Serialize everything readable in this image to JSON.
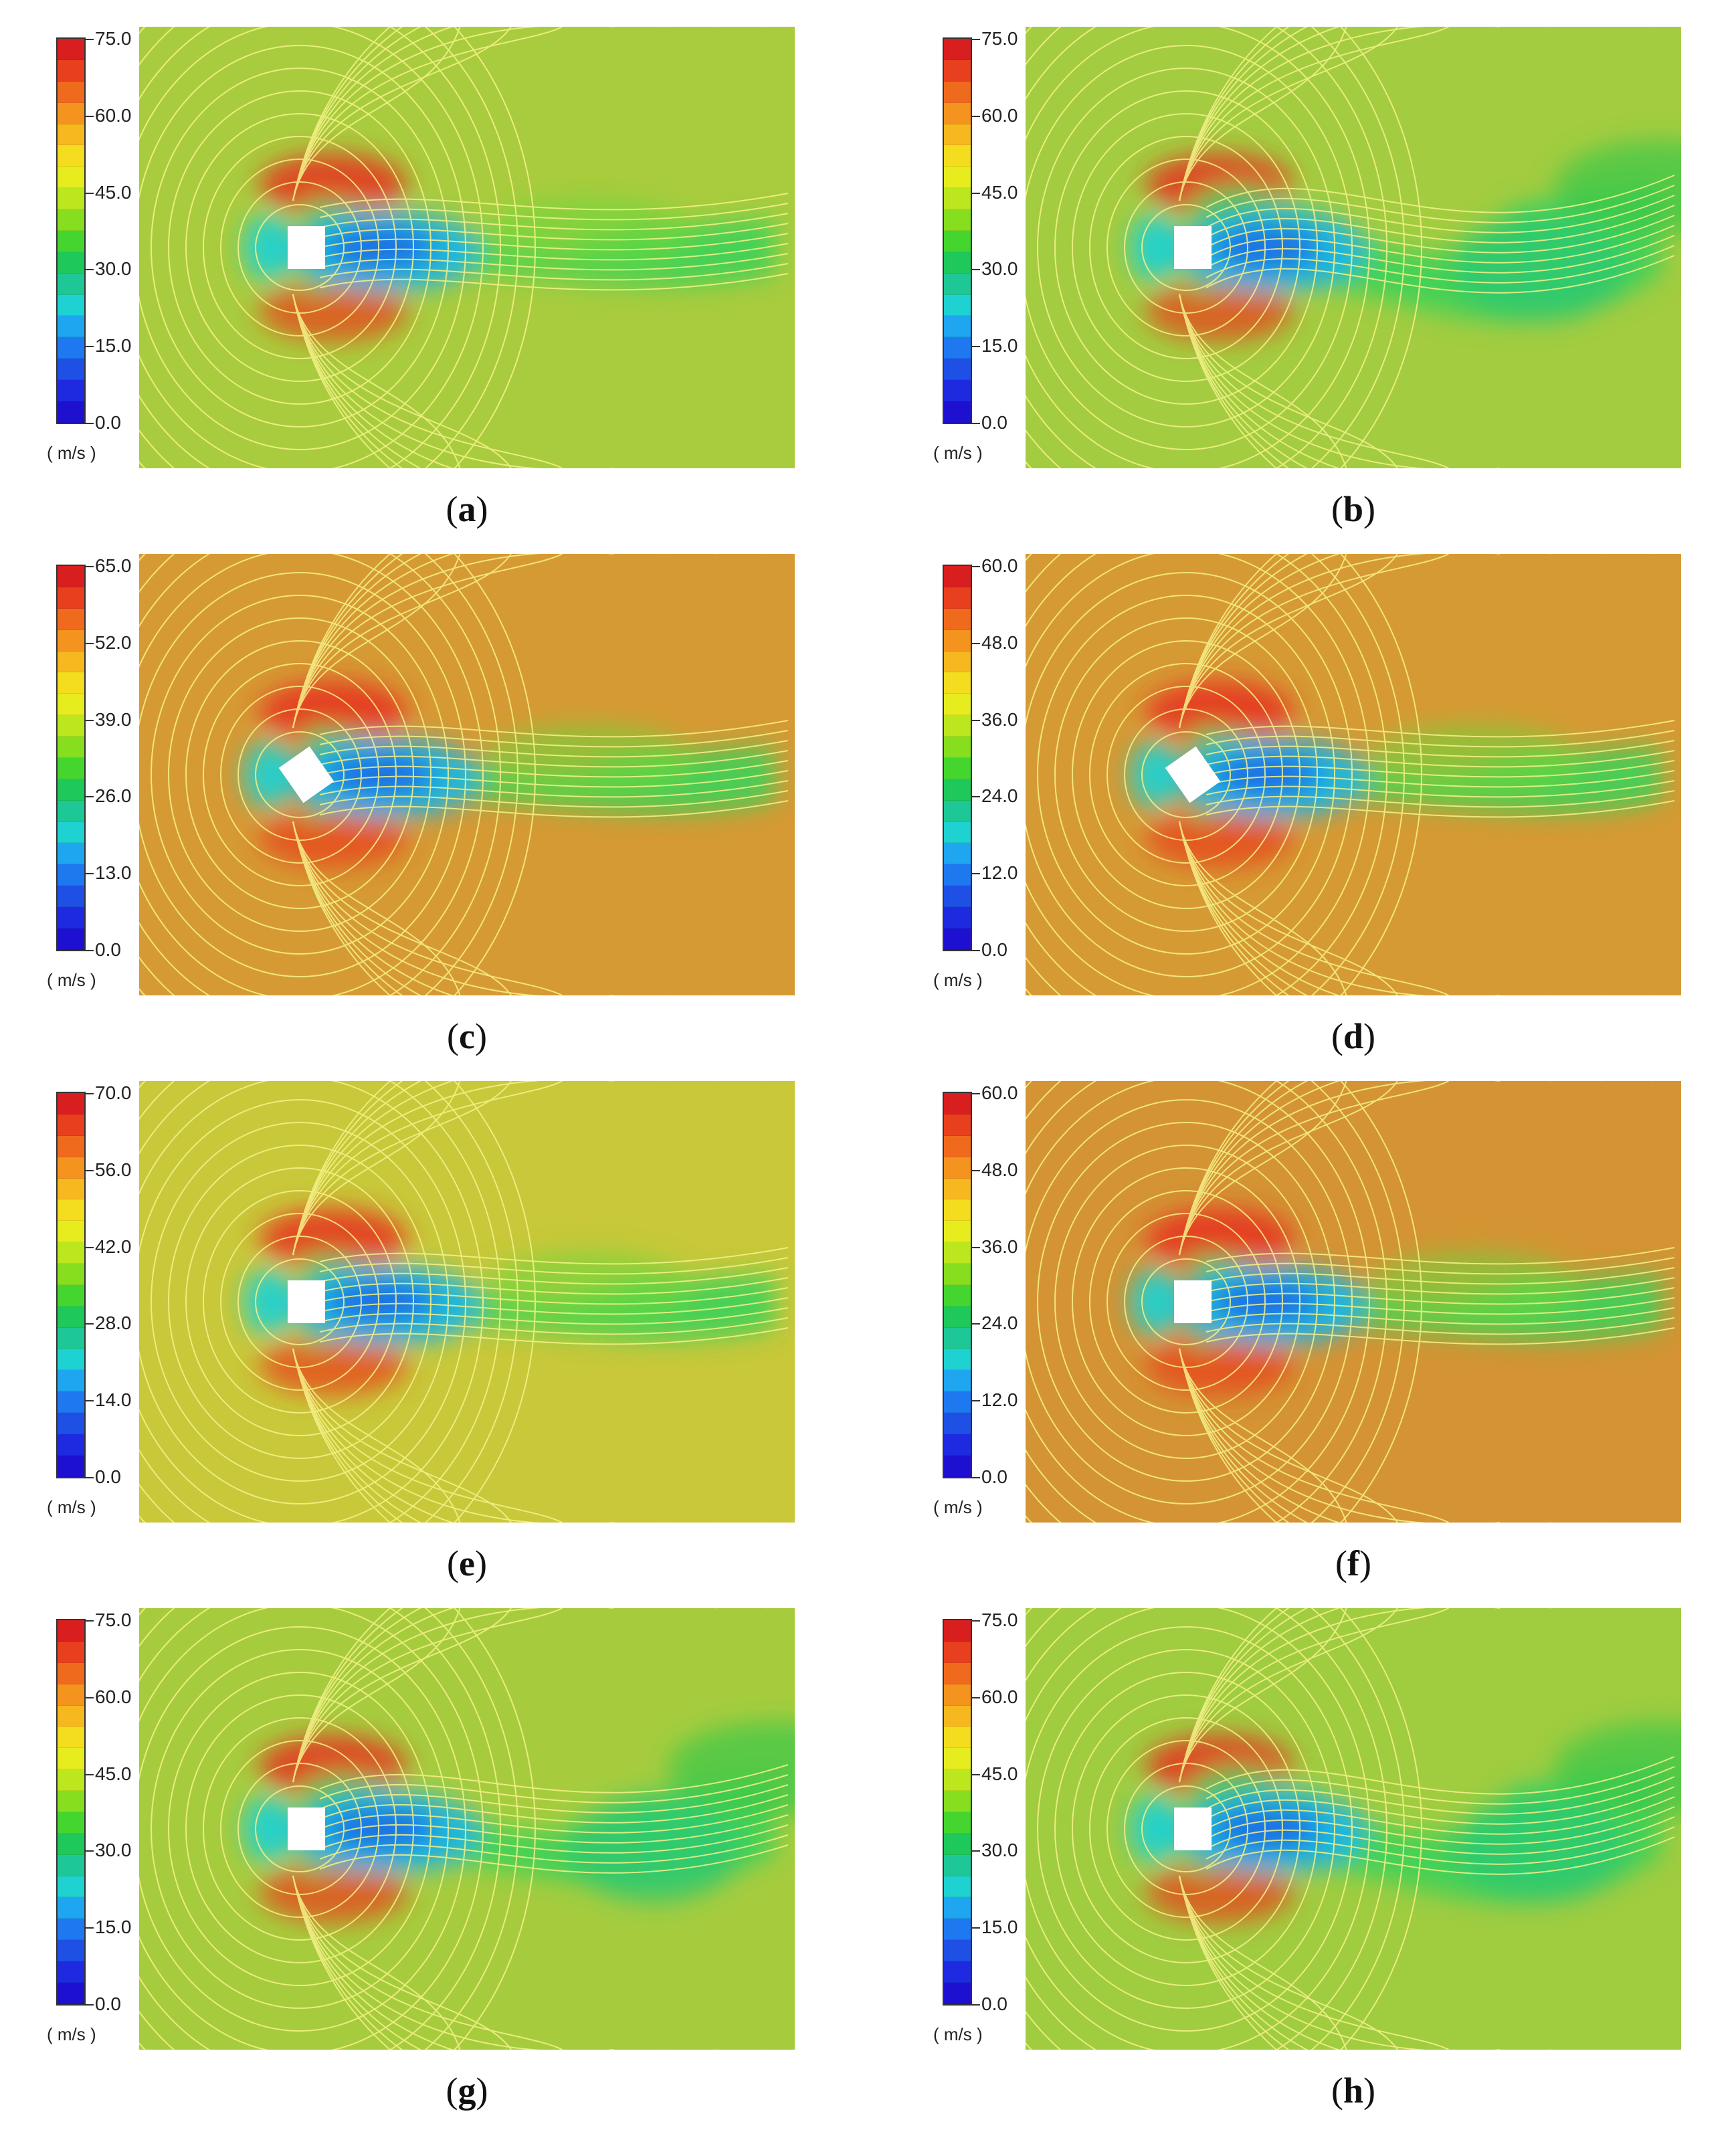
{
  "figure": {
    "unit_label": "( m/s )",
    "panels": [
      {
        "id": "a",
        "caption_letter": "a",
        "ticks": [
          "75.0",
          "60.0",
          "45.0",
          "30.0",
          "15.0",
          "0.0"
        ],
        "scale_max": 75.0,
        "body_angle_deg": 0,
        "background": "#a9cc3e"
      },
      {
        "id": "b",
        "caption_letter": "b",
        "ticks": [
          "75.0",
          "60.0",
          "45.0",
          "30.0",
          "15.0",
          "0.0"
        ],
        "scale_max": 75.0,
        "body_angle_deg": 0,
        "background": "#a3cc40"
      },
      {
        "id": "c",
        "caption_letter": "c",
        "ticks": [
          "65.0",
          "52.0",
          "39.0",
          "26.0",
          "13.0",
          "0.0"
        ],
        "scale_max": 65.0,
        "body_angle_deg": 35,
        "background": "#d69a34"
      },
      {
        "id": "d",
        "caption_letter": "d",
        "ticks": [
          "60.0",
          "48.0",
          "36.0",
          "24.0",
          "12.0",
          "0.0"
        ],
        "scale_max": 60.0,
        "body_angle_deg": 35,
        "background": "#d69a34"
      },
      {
        "id": "e",
        "caption_letter": "e",
        "ticks": [
          "70.0",
          "56.0",
          "42.0",
          "28.0",
          "14.0",
          "0.0"
        ],
        "scale_max": 70.0,
        "body_angle_deg": 0,
        "background": "#c8c83a"
      },
      {
        "id": "f",
        "caption_letter": "f",
        "ticks": [
          "60.0",
          "48.0",
          "36.0",
          "24.0",
          "12.0",
          "0.0"
        ],
        "scale_max": 60.0,
        "body_angle_deg": 0,
        "background": "#d49434"
      },
      {
        "id": "g",
        "caption_letter": "g",
        "ticks": [
          "75.0",
          "60.0",
          "45.0",
          "30.0",
          "15.0",
          "0.0"
        ],
        "scale_max": 75.0,
        "body_angle_deg": 0,
        "background": "#a6cc3e"
      },
      {
        "id": "h",
        "caption_letter": "h",
        "ticks": [
          "75.0",
          "60.0",
          "45.0",
          "30.0",
          "15.0",
          "0.0"
        ],
        "scale_max": 75.0,
        "body_angle_deg": 0,
        "background": "#a0cc40"
      }
    ],
    "colormap": [
      "#d81e1e",
      "#e8401e",
      "#f06a1e",
      "#f4941e",
      "#f6b81e",
      "#f4dc1e",
      "#e6ec1e",
      "#bce61e",
      "#86de1e",
      "#44d62e",
      "#1ec85a",
      "#1ec896",
      "#1ed2d2",
      "#1ea6f0",
      "#1e78f0",
      "#1e50e6",
      "#1e2ae0",
      "#1e10d0"
    ],
    "contour_color": "#f6f28a",
    "body_color": "#ffffff"
  }
}
